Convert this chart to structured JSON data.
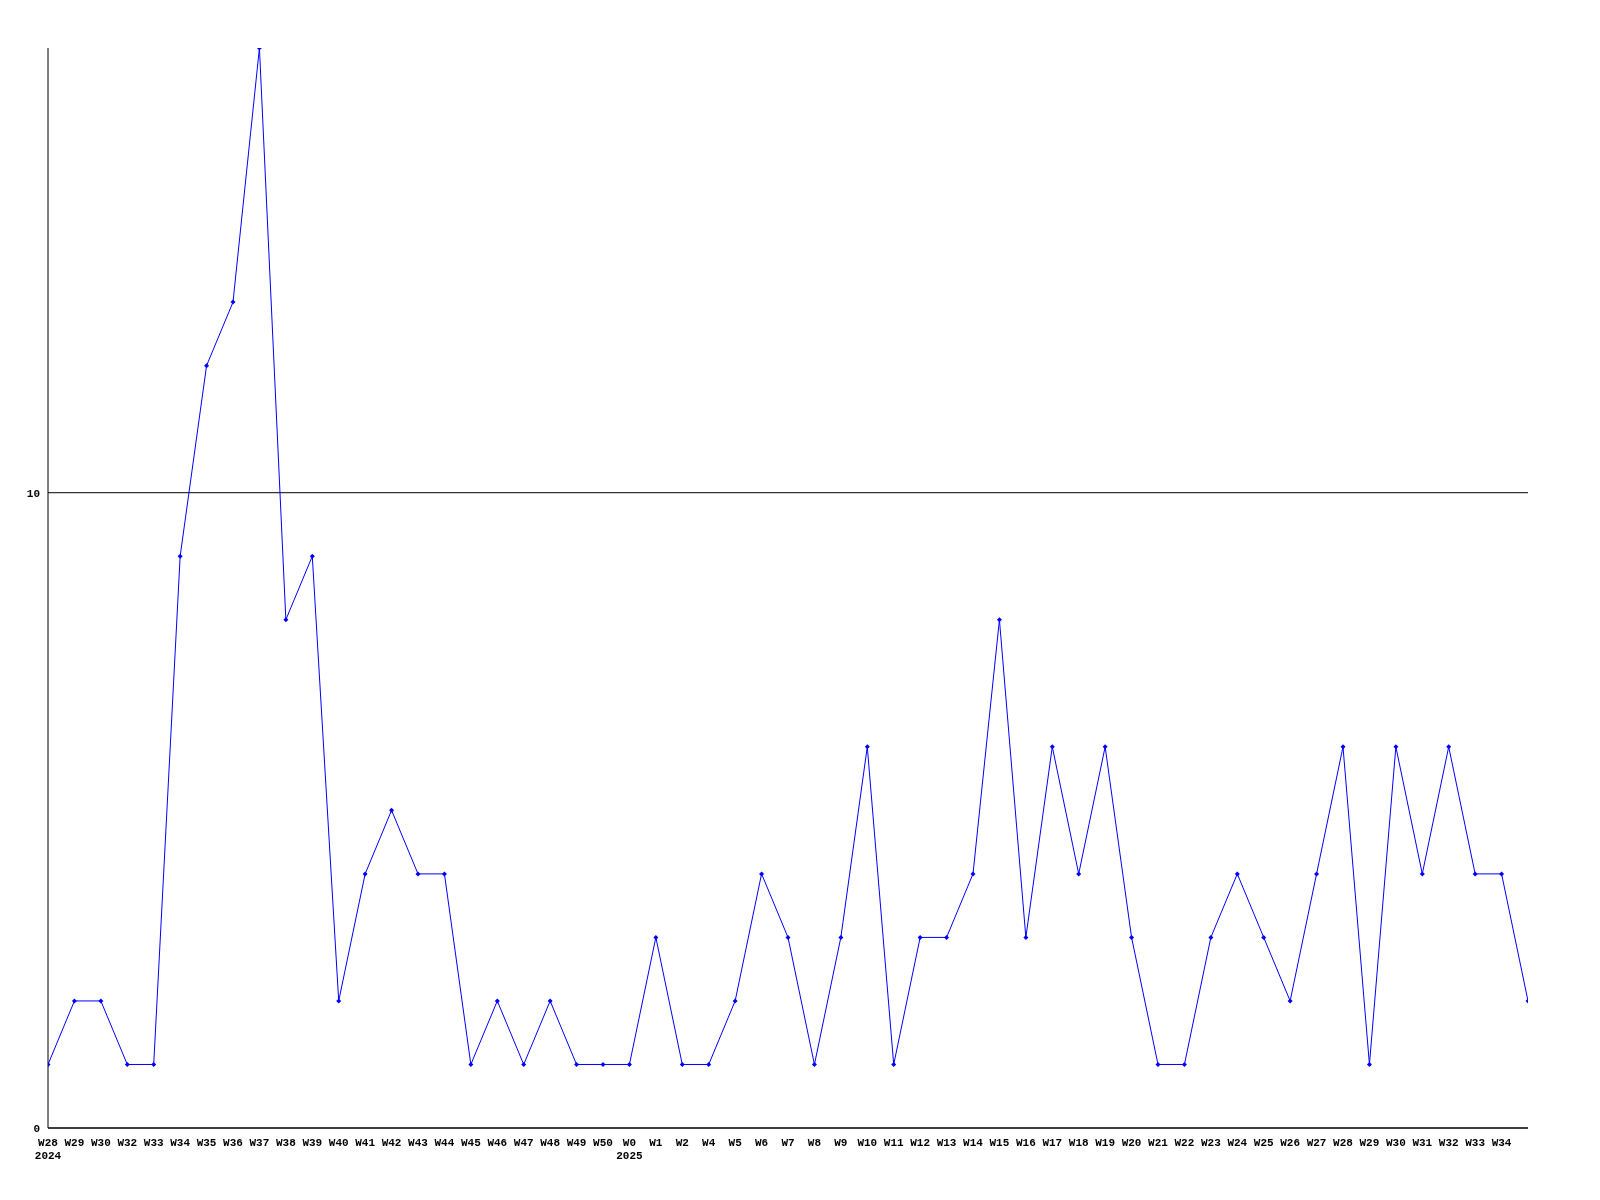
{
  "chart_data": {
    "type": "line",
    "categories": [
      "W28\n2024",
      "W29",
      "W30",
      "W32",
      "W33",
      "W34",
      "W35",
      "W36",
      "W37",
      "W38",
      "W39",
      "W40",
      "W41",
      "W42",
      "W43",
      "W44",
      "W45",
      "W46",
      "W47",
      "W48",
      "W49",
      "W50",
      "W0\n2025",
      "W1",
      "W2",
      "W4",
      "W5",
      "W6",
      "W7",
      "W8",
      "W9",
      "W10",
      "W11",
      "W12",
      "W13",
      "W14",
      "W15",
      "W16",
      "W17",
      "W18",
      "W19",
      "W20",
      "W21",
      "W22",
      "W23",
      "W24",
      "W25",
      "W26",
      "W27",
      "W28",
      "W29",
      "W30",
      "W31",
      "W32",
      "W33",
      "W34",
      null
    ],
    "series": [
      {
        "color": "#0000ff",
        "values": [
          1,
          2,
          2,
          1,
          1,
          9,
          12,
          13,
          17,
          8,
          9,
          2,
          4,
          5,
          4,
          4,
          1,
          2,
          1,
          2,
          1,
          1,
          1,
          3,
          1,
          1,
          2,
          4,
          3,
          1,
          3,
          6,
          1,
          3,
          3,
          4,
          8,
          3,
          6,
          4,
          6,
          3,
          1,
          1,
          3,
          4,
          3,
          2,
          4,
          6,
          1,
          6,
          4,
          6,
          4,
          4,
          2
        ]
      }
    ],
    "ylim": [
      0,
      17
    ],
    "yticks": [
      0,
      10
    ],
    "grid": "y",
    "marker": "diamond",
    "line_style": "solid",
    "legend": false
  }
}
